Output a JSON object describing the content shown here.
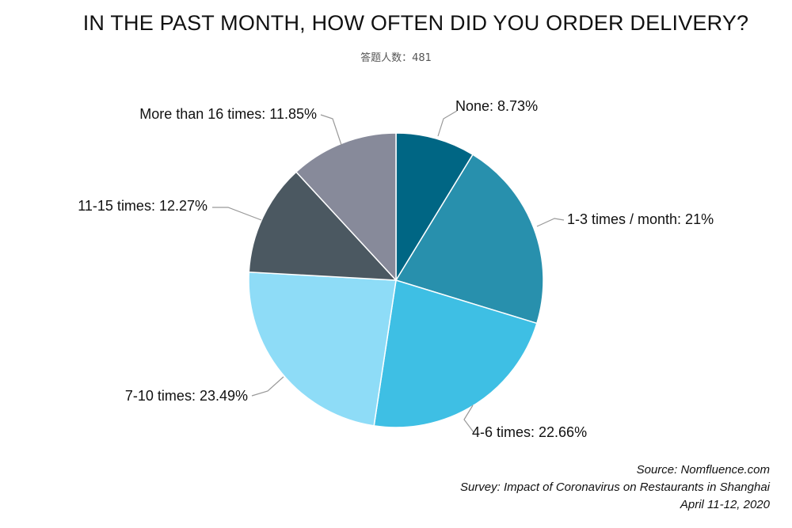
{
  "chart_data": {
    "type": "pie",
    "title": "IN THE PAST MONTH, HOW OFTEN DID YOU ORDER DELIVERY?",
    "subtitle": "答题人数：481",
    "slices": [
      {
        "label": "None: 8.73%",
        "category": "None",
        "value": 8.73,
        "color": "#006684"
      },
      {
        "label": "1-3 times / month: 21%",
        "category": "1-3 times / month",
        "value": 21.0,
        "color": "#2890ad"
      },
      {
        "label": "4-6 times: 22.66%",
        "category": "4-6 times",
        "value": 22.66,
        "color": "#3ebfe4"
      },
      {
        "label": "7-10 times: 23.49%",
        "category": "7-10 times",
        "value": 23.49,
        "color": "#8edcf7"
      },
      {
        "label": "11-15 times: 12.27%",
        "category": "11-15 times",
        "value": 12.27,
        "color": "#4b5861"
      },
      {
        "label": "More than 16 times: 11.85%",
        "category": "More than 16 times",
        "value": 11.85,
        "color": "#878a9a"
      }
    ],
    "start_angle": "12 o'clock",
    "direction": "clockwise",
    "legend": "none"
  },
  "source": {
    "line1": "Source: Nomfluence.com",
    "line2": "Survey: Impact of Coronavirus on Restaurants in Shanghai",
    "line3": "April 11-12, 2020"
  }
}
